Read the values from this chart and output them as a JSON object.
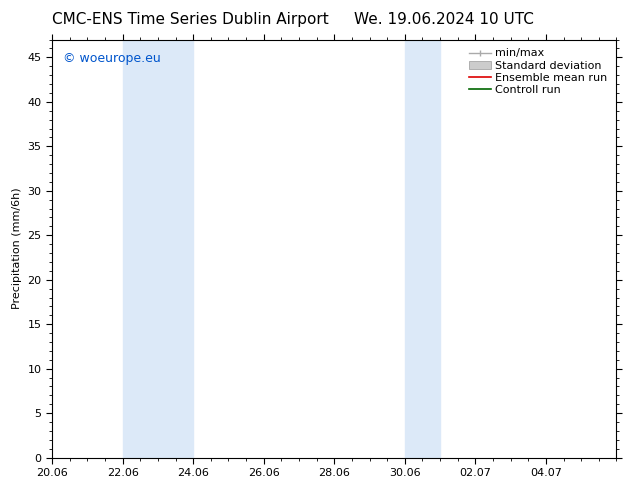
{
  "title_left": "CMC-ENS Time Series Dublin Airport",
  "title_right": "We. 19.06.2024 10 UTC",
  "ylabel": "Precipitation (mm/6h)",
  "watermark": "© woeurope.eu",
  "watermark_color": "#0055cc",
  "xlim_left": 0,
  "xlim_right": 16,
  "ylim_bottom": 0,
  "ylim_top": 47,
  "yticks": [
    0,
    5,
    10,
    15,
    20,
    25,
    30,
    35,
    40,
    45
  ],
  "xtick_labels": [
    "20.06",
    "22.06",
    "24.06",
    "26.06",
    "28.06",
    "30.06",
    "02.07",
    "04.07"
  ],
  "xtick_positions": [
    0,
    2,
    4,
    6,
    8,
    10,
    12,
    14
  ],
  "shaded_bands": [
    {
      "xmin": 2,
      "xmax": 4
    },
    {
      "xmin": 10,
      "xmax": 11
    }
  ],
  "shaded_color": "#dce9f8",
  "legend_labels": [
    "min/max",
    "Standard deviation",
    "Ensemble mean run",
    "Controll run"
  ],
  "minmax_color": "#aaaaaa",
  "stddev_color": "#cccccc",
  "ensemble_color": "#dd0000",
  "control_color": "#006600",
  "bg_color": "#ffffff",
  "axes_color": "#000000",
  "title_fontsize": 11,
  "tick_fontsize": 8,
  "ylabel_fontsize": 8,
  "legend_fontsize": 8,
  "watermark_fontsize": 9
}
